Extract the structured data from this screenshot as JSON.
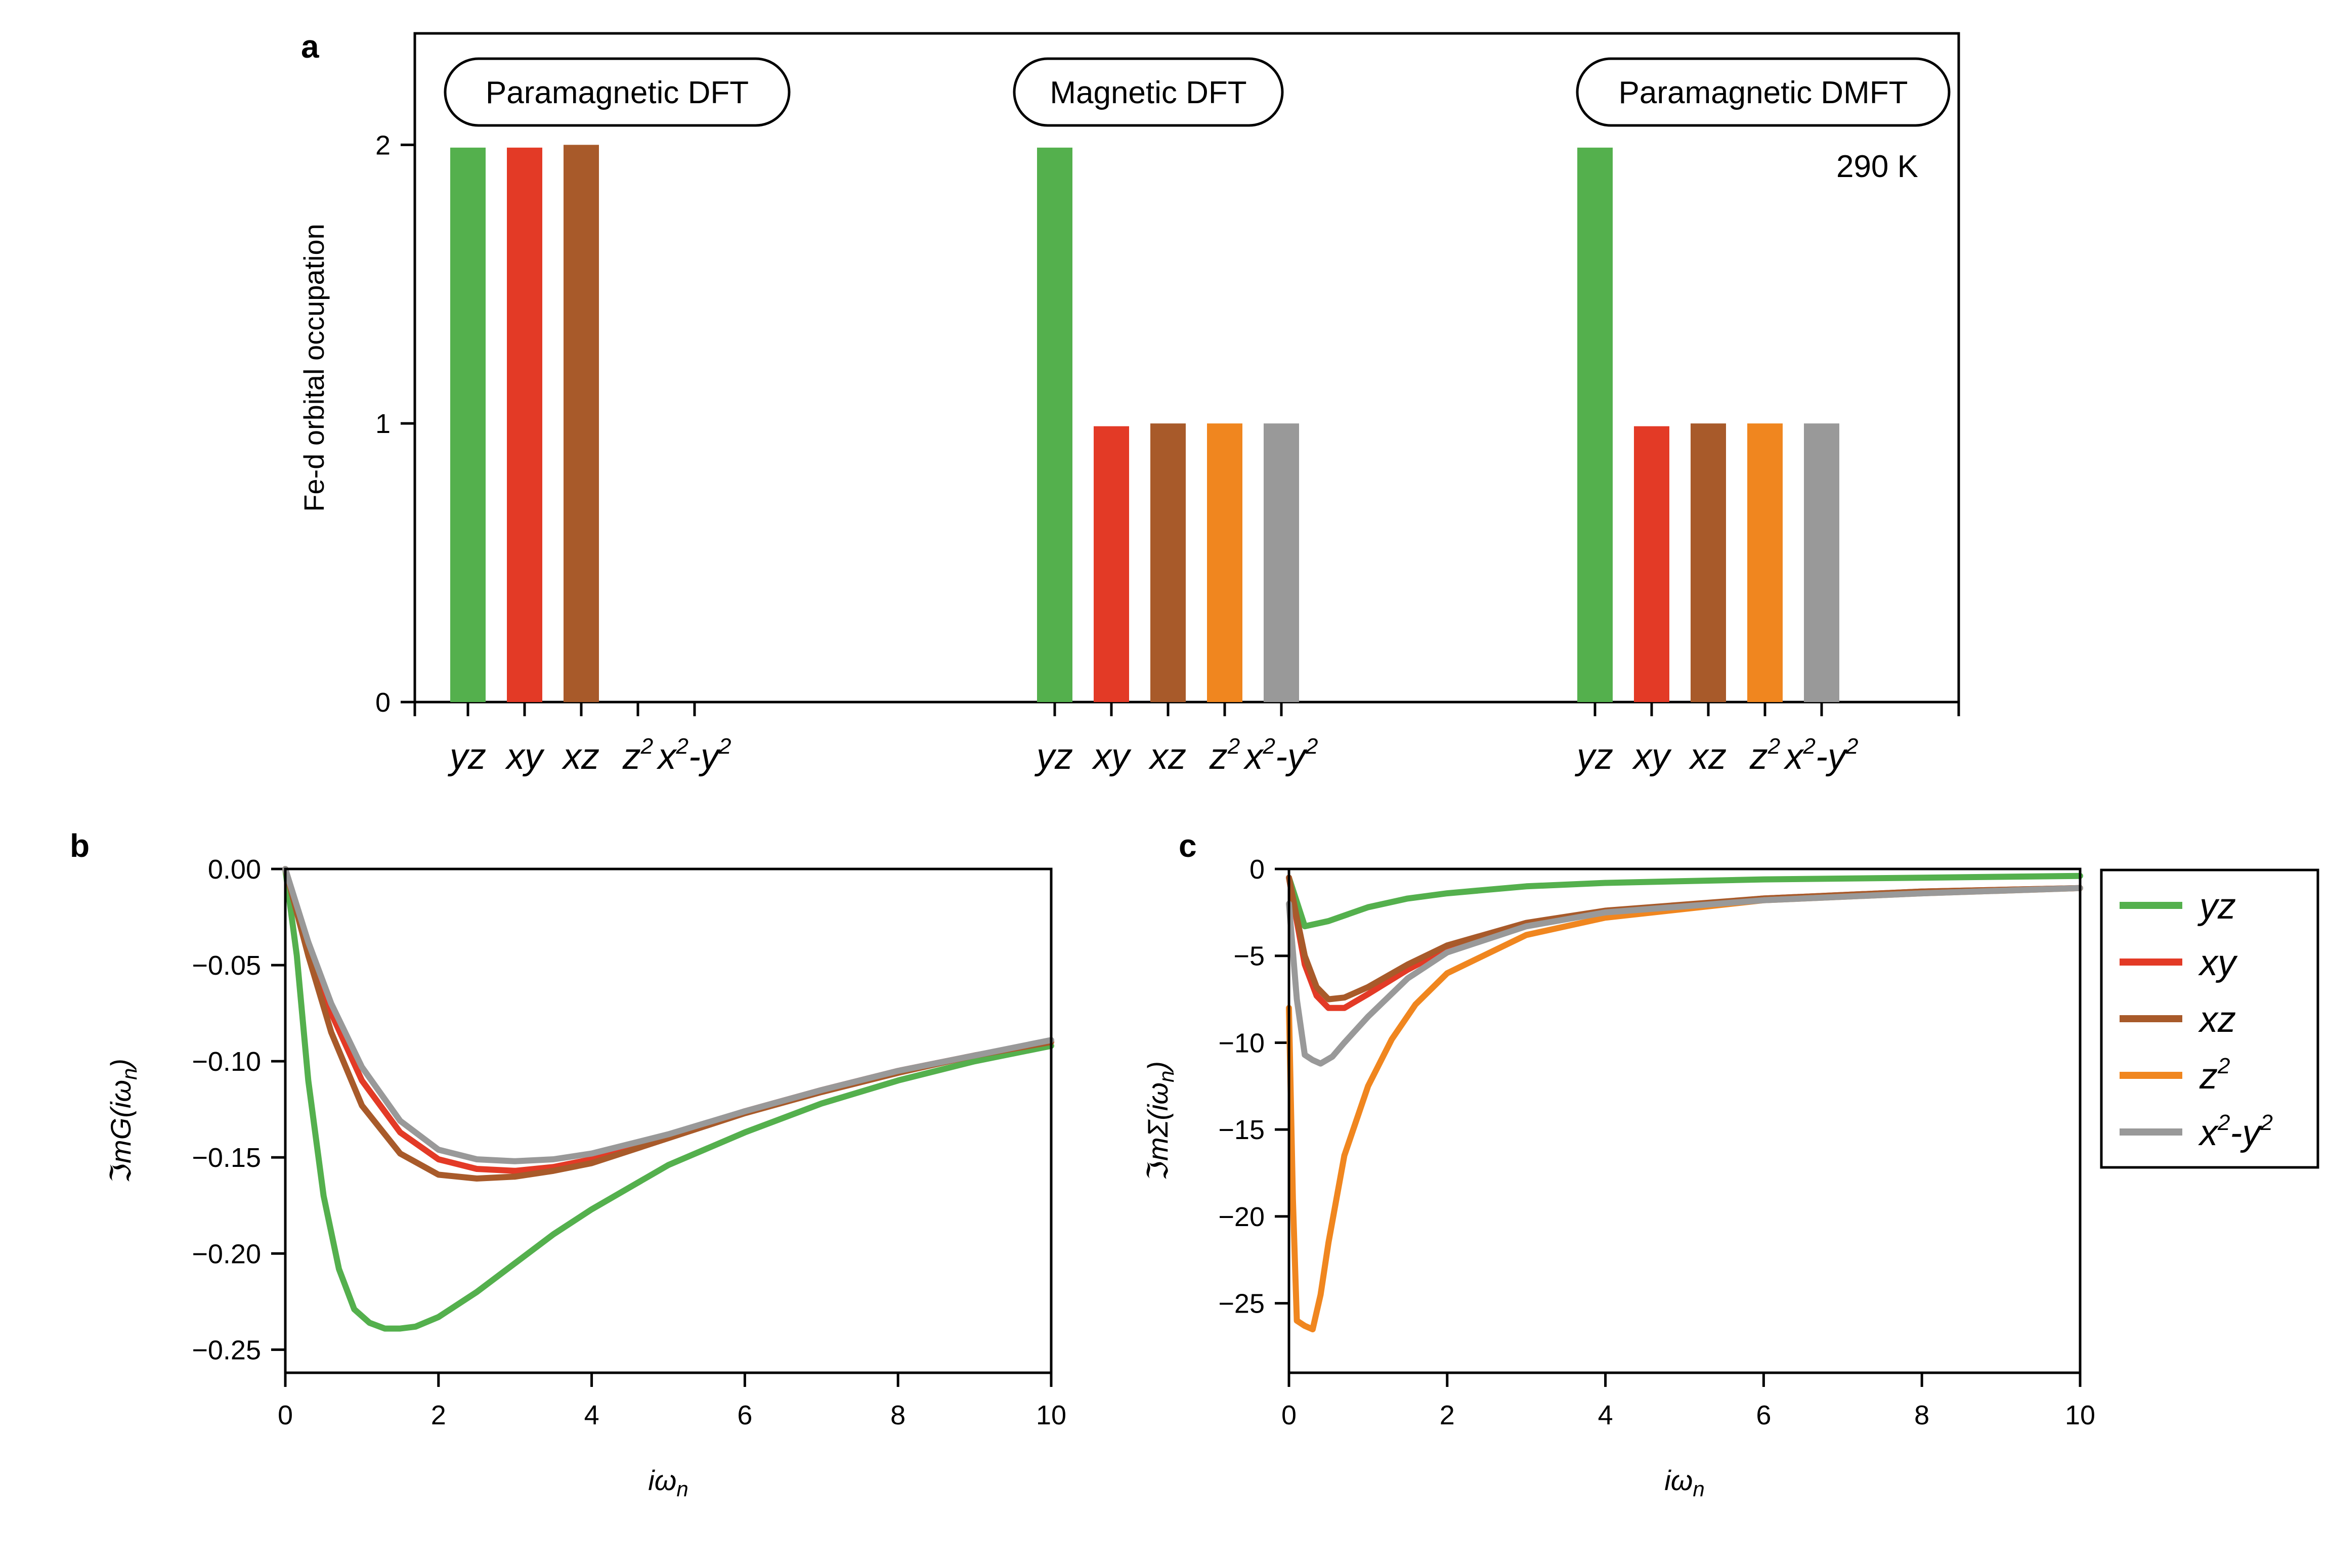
{
  "colors": {
    "yz": "#54b04d",
    "xy": "#e33a26",
    "xz": "#a85a2a",
    "z2": "#f0861f",
    "x2y2": "#999999"
  },
  "panel_labels": {
    "a": "a",
    "b": "b",
    "c": "c"
  },
  "chart_data": [
    {
      "id": "a",
      "type": "bar",
      "ylabel": "Fe-d orbital occupation",
      "ylim": [
        0,
        2.4
      ],
      "yticks": [
        0,
        1,
        2
      ],
      "categories": [
        "yz",
        "xy",
        "xz",
        "z2",
        "x2-y2"
      ],
      "category_labels": [
        {
          "base": "yz",
          "sup": ""
        },
        {
          "base": "xy",
          "sup": ""
        },
        {
          "base": "xz",
          "sup": ""
        },
        {
          "base": "z",
          "sup": "2"
        },
        {
          "base": "x",
          "sup": "2",
          "mid": "-y",
          "sup2": "2"
        }
      ],
      "groups": [
        {
          "name": "Paramagnetic DFT",
          "values": [
            1.99,
            1.99,
            2.0,
            0,
            0
          ]
        },
        {
          "name": "Magnetic DFT",
          "values": [
            1.99,
            0.99,
            1.0,
            1.0,
            1.0
          ]
        },
        {
          "name": "Paramagnetic DMFT",
          "values": [
            1.99,
            0.99,
            1.0,
            1.0,
            1.0
          ]
        }
      ],
      "annotation": "290 K"
    },
    {
      "id": "b",
      "type": "line",
      "xlabel": "iω",
      "xlabel_sub": "n",
      "ylabel": "ℑmG(iω",
      "ylabel_sub": "n",
      "ylabel_end": ")",
      "xlim": [
        0,
        10
      ],
      "ylim": [
        -0.262,
        0
      ],
      "xticks": [
        0,
        2,
        4,
        6,
        8,
        10
      ],
      "yticks": [
        0.0,
        -0.05,
        -0.1,
        -0.15,
        -0.2,
        -0.25
      ],
      "ytick_labels": [
        "0.00",
        "−0.05",
        "−0.10",
        "−0.15",
        "−0.20",
        "−0.25"
      ],
      "series": [
        {
          "name": "yz",
          "x": [
            0,
            0.15,
            0.3,
            0.5,
            0.7,
            0.9,
            1.1,
            1.3,
            1.5,
            1.7,
            2.0,
            2.5,
            3.0,
            3.5,
            4.0,
            5.0,
            6.0,
            7.0,
            8.0,
            9.0,
            10.0
          ],
          "y": [
            0,
            -0.045,
            -0.11,
            -0.17,
            -0.208,
            -0.229,
            -0.236,
            -0.239,
            -0.239,
            -0.238,
            -0.233,
            -0.22,
            -0.205,
            -0.19,
            -0.177,
            -0.154,
            -0.137,
            -0.122,
            -0.11,
            -0.1,
            -0.092
          ]
        },
        {
          "name": "xy",
          "x": [
            0,
            0.3,
            0.6,
            1.0,
            1.5,
            2.0,
            2.5,
            3.0,
            3.5,
            4.0,
            5.0,
            6.0,
            7.0,
            8.0,
            9.0,
            10.0
          ],
          "y": [
            0,
            -0.04,
            -0.075,
            -0.11,
            -0.137,
            -0.151,
            -0.156,
            -0.157,
            -0.155,
            -0.151,
            -0.139,
            -0.126,
            -0.115,
            -0.105,
            -0.097,
            -0.09
          ]
        },
        {
          "name": "xz",
          "x": [
            0,
            0.3,
            0.6,
            1.0,
            1.5,
            2.0,
            2.5,
            3.0,
            3.5,
            4.0,
            5.0,
            6.0,
            7.0,
            8.0,
            9.0,
            10.0
          ],
          "y": [
            0,
            -0.045,
            -0.085,
            -0.123,
            -0.148,
            -0.159,
            -0.161,
            -0.16,
            -0.157,
            -0.153,
            -0.14,
            -0.127,
            -0.116,
            -0.106,
            -0.097,
            -0.09
          ]
        },
        {
          "name": "x2-y2",
          "x": [
            0,
            0.3,
            0.6,
            1.0,
            1.5,
            2.0,
            2.5,
            3.0,
            3.5,
            4.0,
            5.0,
            6.0,
            7.0,
            8.0,
            9.0,
            10.0
          ],
          "y": [
            0,
            -0.038,
            -0.07,
            -0.103,
            -0.131,
            -0.146,
            -0.151,
            -0.152,
            -0.151,
            -0.148,
            -0.138,
            -0.126,
            -0.115,
            -0.105,
            -0.097,
            -0.089
          ]
        }
      ]
    },
    {
      "id": "c",
      "type": "line",
      "xlabel": "iω",
      "xlabel_sub": "n",
      "ylabel": "ℑmΣ(iω",
      "ylabel_sub": "n",
      "ylabel_end": ")",
      "xlim": [
        0,
        10
      ],
      "ylim": [
        -29,
        0
      ],
      "xticks": [
        0,
        2,
        4,
        6,
        8,
        10
      ],
      "yticks": [
        0,
        -5,
        -10,
        -15,
        -20,
        -25
      ],
      "ytick_labels": [
        "0",
        "−5",
        "−10",
        "−15",
        "−20",
        "−25"
      ],
      "series": [
        {
          "name": "yz",
          "label": {
            "base": "yz"
          },
          "x": [
            0.0,
            0.2,
            0.5,
            1.0,
            1.5,
            2.0,
            3.0,
            4.0,
            6.0,
            8.0,
            10.0
          ],
          "y": [
            -0.5,
            -3.3,
            -3.0,
            -2.2,
            -1.7,
            -1.4,
            -1.0,
            -0.8,
            -0.6,
            -0.5,
            -0.4
          ]
        },
        {
          "name": "xy",
          "label": {
            "base": "xy"
          },
          "x": [
            0.0,
            0.1,
            0.2,
            0.35,
            0.5,
            0.7,
            1.0,
            1.5,
            2.0,
            3.0,
            4.0,
            6.0,
            8.0,
            10.0
          ],
          "y": [
            -0.5,
            -3.0,
            -5.5,
            -7.3,
            -8.0,
            -8.0,
            -7.2,
            -5.8,
            -4.6,
            -3.2,
            -2.5,
            -1.7,
            -1.3,
            -1.1
          ]
        },
        {
          "name": "xz",
          "label": {
            "base": "xz"
          },
          "x": [
            0.0,
            0.1,
            0.2,
            0.35,
            0.5,
            0.7,
            1.0,
            1.5,
            2.0,
            3.0,
            4.0,
            6.0,
            8.0,
            10.0
          ],
          "y": [
            -0.5,
            -2.8,
            -5.0,
            -6.8,
            -7.5,
            -7.4,
            -6.8,
            -5.5,
            -4.4,
            -3.1,
            -2.4,
            -1.7,
            -1.3,
            -1.1
          ]
        },
        {
          "name": "z2",
          "label": {
            "base": "z",
            "sup": "2"
          },
          "x": [
            0.0,
            0.05,
            0.1,
            0.2,
            0.3,
            0.4,
            0.5,
            0.7,
            1.0,
            1.3,
            1.6,
            2.0,
            3.0,
            4.0,
            6.0,
            8.0,
            10.0
          ],
          "y": [
            -8.0,
            -19.0,
            -26.0,
            -26.3,
            -26.5,
            -24.5,
            -21.5,
            -16.5,
            -12.5,
            -9.8,
            -7.8,
            -6.0,
            -3.8,
            -2.8,
            -1.8,
            -1.4,
            -1.1
          ]
        },
        {
          "name": "x2-y2",
          "label": {
            "base": "x",
            "sup": "2",
            "mid": "-y",
            "sup2": "2"
          },
          "x": [
            0.0,
            0.1,
            0.2,
            0.3,
            0.4,
            0.55,
            0.7,
            1.0,
            1.5,
            2.0,
            3.0,
            4.0,
            6.0,
            8.0,
            10.0
          ],
          "y": [
            -2.0,
            -7.5,
            -10.7,
            -11.0,
            -11.2,
            -10.8,
            -10.0,
            -8.5,
            -6.3,
            -4.8,
            -3.3,
            -2.5,
            -1.8,
            -1.4,
            -1.1
          ]
        }
      ]
    }
  ]
}
